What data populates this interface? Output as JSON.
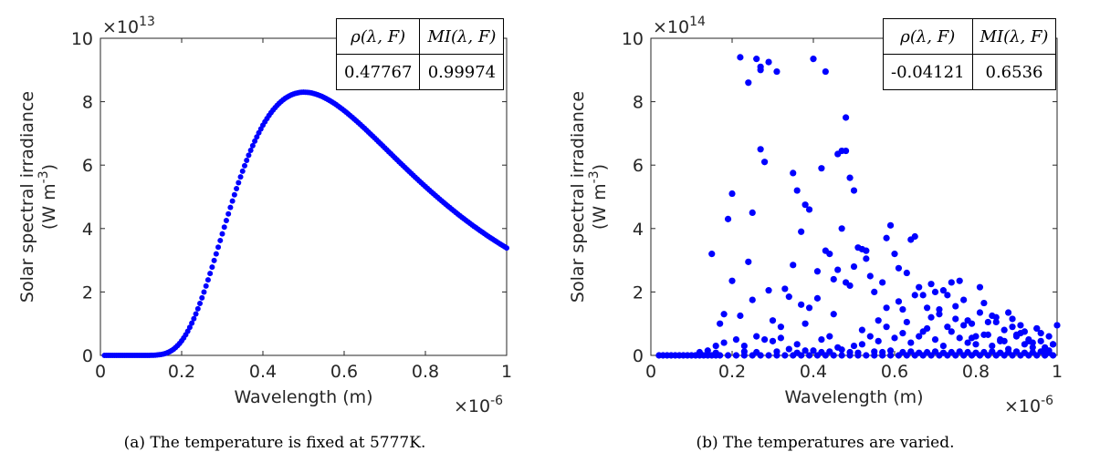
{
  "chart_data": [
    {
      "type": "scatter",
      "xlabel": "Wavelength (m)",
      "ylabel_line1": "Solar spectral irradiance",
      "ylabel_line2": "(W m",
      "ylabel_sup": "-3",
      "ylabel_close": ")",
      "x_exponent_base": "×10",
      "x_exponent": "-6",
      "y_exponent_base": "×10",
      "y_exponent": "13",
      "xlim": [
        0,
        1
      ],
      "ylim": [
        0,
        10
      ],
      "xticks": [
        0,
        0.2,
        0.4,
        0.6,
        0.8,
        1
      ],
      "xtick_labels": [
        "0",
        "0.2",
        "0.4",
        "0.6",
        "0.8",
        "1"
      ],
      "yticks": [
        0,
        2,
        4,
        6,
        8,
        10
      ],
      "ytick_labels": [
        "0",
        "2",
        "4",
        "6",
        "8",
        "10"
      ],
      "marker_color": "#0000ff",
      "points": {
        "generator": "planck",
        "temperature_K": 5777,
        "x_start": 0.01,
        "x_end": 1,
        "x_step": 0.005,
        "description": "Dense points following blackbody curve, peak ≈ 8.3 at x≈0.5, y≈3.4 at x=1"
      },
      "stats": {
        "col1_header": "ρ(λ, F)",
        "col2_header": "MI(λ, F)",
        "col1_value": "0.47767",
        "col2_value": "0.99974"
      },
      "caption": "(a) The temperature is fixed at 5777K."
    },
    {
      "type": "scatter",
      "xlabel": "Wavelength (m)",
      "ylabel_line1": "Solar spectral irradiance",
      "ylabel_line2": "(W m",
      "ylabel_sup": "-3",
      "ylabel_close": ")",
      "x_exponent_base": "×10",
      "x_exponent": "-6",
      "y_exponent_base": "×10",
      "y_exponent": "14",
      "xlim": [
        0,
        1
      ],
      "ylim": [
        0,
        10
      ],
      "xticks": [
        0,
        0.2,
        0.4,
        0.6,
        0.8,
        1
      ],
      "xtick_labels": [
        "0",
        "0.2",
        "0.4",
        "0.6",
        "0.8",
        "1"
      ],
      "yticks": [
        0,
        2,
        4,
        6,
        8,
        10
      ],
      "ytick_labels": [
        "0",
        "2",
        "4",
        "6",
        "8",
        "10"
      ],
      "marker_color": "#0000ff",
      "x": [
        0.02,
        0.03,
        0.04,
        0.05,
        0.06,
        0.07,
        0.08,
        0.09,
        0.1,
        0.11,
        0.12,
        0.13,
        0.14,
        0.15,
        0.16,
        0.17,
        0.19,
        0.21,
        0.23,
        0.25,
        0.27,
        0.29,
        0.31,
        0.33,
        0.35,
        0.37,
        0.39,
        0.41,
        0.43,
        0.45,
        0.47,
        0.49,
        0.51,
        0.53,
        0.55,
        0.57,
        0.59,
        0.61,
        0.63,
        0.65,
        0.67,
        0.69,
        0.71,
        0.73,
        0.75,
        0.77,
        0.79,
        0.81,
        0.83,
        0.85,
        0.87,
        0.89,
        0.91,
        0.93,
        0.95,
        0.97,
        0.99,
        0.22,
        0.24,
        0.26,
        0.27,
        0.28,
        0.29,
        0.31,
        0.4,
        0.43,
        0.25,
        0.27,
        0.27,
        0.48,
        0.2,
        0.19,
        0.35,
        0.36,
        0.37,
        0.38,
        0.39,
        0.42,
        0.47,
        0.48,
        0.49,
        0.5,
        0.47,
        0.51,
        0.53,
        0.46,
        0.41,
        0.15,
        0.17,
        0.24,
        0.25,
        0.29,
        0.33,
        0.34,
        0.35,
        0.38,
        0.39,
        0.43,
        0.44,
        0.45,
        0.46,
        0.48,
        0.49,
        0.5,
        0.52,
        0.53,
        0.54,
        0.55,
        0.57,
        0.58,
        0.59,
        0.6,
        0.61,
        0.62,
        0.63,
        0.64,
        0.65,
        0.66,
        0.67,
        0.68,
        0.69,
        0.7,
        0.71,
        0.72,
        0.73,
        0.74,
        0.75,
        0.76,
        0.77,
        0.78,
        0.79,
        0.8,
        0.81,
        0.82,
        0.83,
        0.84,
        0.85,
        0.86,
        0.87,
        0.88,
        0.89,
        0.9,
        0.91,
        0.92,
        0.93,
        0.94,
        0.95,
        0.96,
        0.97,
        0.98,
        0.99,
        1.0,
        0.12,
        0.14,
        0.16,
        0.18,
        0.21,
        0.23,
        0.26,
        0.28,
        0.3,
        0.32,
        0.34,
        0.36,
        0.4,
        0.42,
        0.44,
        0.46,
        0.5,
        0.52,
        0.54,
        0.56,
        0.58,
        0.6,
        0.62,
        0.64,
        0.66,
        0.68,
        0.7,
        0.72,
        0.74,
        0.76,
        0.78,
        0.8,
        0.82,
        0.84,
        0.86,
        0.88,
        0.9,
        0.92,
        0.94,
        0.96,
        0.98,
        0.18,
        0.2,
        0.22,
        0.3,
        0.32,
        0.37,
        0.41,
        0.45,
        0.52,
        0.56,
        0.58,
        0.61,
        0.63,
        0.65,
        0.67,
        0.69,
        0.71,
        0.73,
        0.75,
        0.77,
        0.79,
        0.81,
        0.83,
        0.85,
        0.87,
        0.89,
        0.91,
        0.93,
        0.95,
        0.97,
        0.99,
        0.16,
        0.23,
        0.26,
        0.31,
        0.36,
        0.38,
        0.42,
        0.44,
        0.47,
        0.49,
        0.51,
        0.55,
        0.57,
        0.59,
        0.62,
        0.64,
        0.66,
        0.68,
        0.7,
        0.72,
        0.74,
        0.76,
        0.78,
        0.8,
        0.82,
        0.84,
        0.86,
        0.88,
        0.9,
        0.92,
        0.94,
        0.96,
        0.98
      ],
      "y": [
        0,
        0,
        0,
        0,
        0,
        0,
        0,
        0,
        0,
        0,
        0,
        0,
        0,
        0,
        0,
        0,
        0,
        0,
        0,
        0,
        0,
        0,
        0,
        0,
        0,
        0,
        0,
        0,
        0,
        0,
        0,
        0,
        0,
        0,
        0,
        0,
        0,
        0,
        0,
        0,
        0,
        0,
        0,
        0,
        0,
        0,
        0,
        0,
        0,
        0,
        0,
        0,
        0,
        0,
        0,
        0,
        0,
        9.4,
        8.6,
        9.35,
        6.5,
        6.1,
        9.25,
        8.95,
        9.35,
        8.95,
        4.5,
        9.1,
        9.0,
        7.5,
        5.1,
        4.3,
        5.75,
        5.2,
        3.9,
        4.75,
        4.6,
        5.9,
        6.45,
        6.45,
        5.6,
        5.2,
        4.0,
        3.4,
        3.3,
        6.35,
        2.65,
        3.2,
        1.0,
        2.95,
        1.75,
        2.05,
        2.1,
        1.85,
        2.85,
        1.0,
        1.5,
        3.3,
        3.2,
        2.4,
        2.7,
        2.3,
        2.2,
        2.8,
        3.35,
        3.05,
        2.5,
        2.0,
        2.3,
        3.7,
        4.1,
        3.2,
        2.75,
        1.45,
        2.6,
        3.65,
        3.75,
        2.15,
        1.9,
        1.5,
        2.25,
        2.0,
        1.3,
        2.05,
        1.9,
        2.3,
        1.15,
        2.35,
        1.75,
        1.1,
        1.0,
        0.6,
        2.15,
        1.65,
        1.05,
        1.25,
        1.2,
        0.45,
        0.8,
        1.35,
        0.9,
        0.65,
        0.95,
        0.75,
        0.5,
        0.4,
        0.85,
        0.7,
        0.25,
        0.6,
        0.35,
        0.95,
        0.1,
        0.15,
        0.3,
        0.4,
        0.5,
        0.3,
        0.6,
        0.5,
        0.45,
        0.55,
        0.2,
        0.35,
        0.15,
        0.5,
        0.6,
        0.25,
        0.3,
        0.35,
        0.6,
        0.45,
        0.9,
        0.55,
        0.7,
        0.4,
        0.6,
        0.85,
        0.5,
        0.3,
        0.75,
        0.55,
        0.4,
        0.35,
        0.65,
        0.3,
        0.5,
        0.2,
        0.6,
        0.35,
        0.25,
        0.45,
        0.15,
        1.3,
        2.35,
        1.25,
        1.1,
        0.9,
        1.6,
        1.8,
        1.3,
        0.8,
        1.1,
        1.5,
        1.7,
        1.05,
        1.9,
        0.75,
        1.2,
        1.45,
        0.9,
        1.55,
        0.95,
        0.55,
        1.35,
        0.65,
        1.05,
        0.45,
        1.15,
        0.7,
        0.45,
        0.85,
        0.2,
        0.35,
        0.08,
        0.12,
        0.1,
        0.12,
        0.08,
        0.15,
        0.1,
        0.12,
        0.18,
        0.1,
        0.08,
        0.12,
        0.1,
        0.15,
        0.1,
        0.12,
        0.08,
        0.1,
        0.12,
        0.08,
        0.1,
        0.12,
        0.1,
        0.08,
        0.1,
        0.12,
        0.08,
        0.1,
        0.12,
        0.08,
        0.1,
        0.12,
        0.08
      ],
      "stats": {
        "col1_header": "ρ(λ, F)",
        "col2_header": "MI(λ, F)",
        "col1_value": "-0.04121",
        "col2_value": "0.6536"
      },
      "caption": "(b) The temperatures are varied."
    }
  ]
}
